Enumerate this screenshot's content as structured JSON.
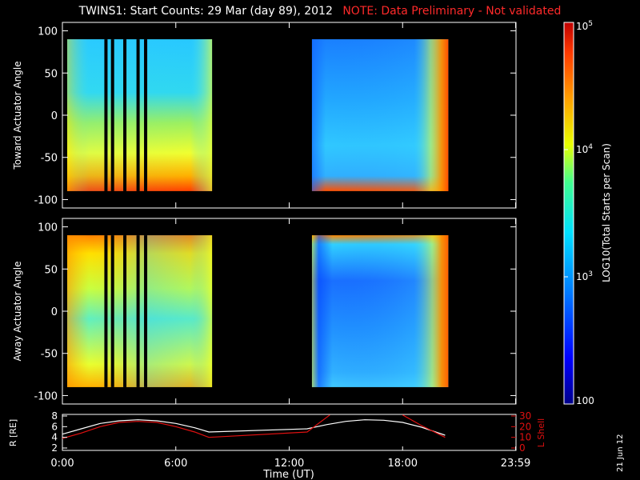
{
  "title": {
    "main": "TWINS1: Start Counts: 29 Mar (day  89), 2012",
    "note": "NOTE: Data Preliminary - Not validated"
  },
  "date_stamp": "21 Jun 12",
  "colors": {
    "background": "#000000",
    "text": "#ffffff",
    "note": "#ff2a2a",
    "l_shell": "#e01010",
    "r_line": "#ffffff"
  },
  "chart_data": [
    {
      "type": "heatmap",
      "panel": "top",
      "ylabel": "Toward Actuator Angle",
      "ylim": [
        -110,
        110
      ],
      "yticks": [
        "100",
        "50",
        "0",
        "-50",
        "-100"
      ],
      "xlim": [
        0,
        24
      ],
      "data_intervals_hours": [
        [
          0.0,
          7.75
        ],
        [
          12.95,
          20.25
        ]
      ],
      "gap_lines_hours": [
        2.05,
        2.4,
        3.05,
        3.75,
        4.15
      ]
    },
    {
      "type": "heatmap",
      "panel": "middle",
      "ylabel": "Away Actuator Angle",
      "ylim": [
        -110,
        110
      ],
      "yticks": [
        "100",
        "50",
        "0",
        "-50",
        "-100"
      ],
      "xlim": [
        0,
        24
      ],
      "data_intervals_hours": [
        [
          0.0,
          7.75
        ],
        [
          12.95,
          20.25
        ]
      ],
      "gap_lines_hours": [
        2.05,
        2.4,
        3.05,
        3.75,
        4.15
      ]
    },
    {
      "type": "line",
      "panel": "bottom",
      "ylabel_left": "R [RE]",
      "ylabel_right": "L Shell",
      "xlabel": "Time (UT)",
      "ylim_left": [
        2,
        8
      ],
      "yticks_left": [
        "2",
        "4",
        "6",
        "8"
      ],
      "ylim_right": [
        0,
        30
      ],
      "yticks_right": [
        "0",
        "10",
        "20",
        "30"
      ],
      "xlim": [
        0,
        24
      ],
      "xticks": [
        {
          "x": 0,
          "label": "0:00"
        },
        {
          "x": 6,
          "label": "6:00"
        },
        {
          "x": 12,
          "label": "12:00"
        },
        {
          "x": 18,
          "label": "18:00"
        },
        {
          "x": 23.98,
          "label": "23:59"
        }
      ],
      "series": [
        {
          "name": "R",
          "axis": "left",
          "x": [
            0,
            1,
            2,
            3,
            4,
            5,
            6,
            7,
            7.75,
            12.95,
            14,
            15,
            16,
            17,
            18,
            19,
            20.25
          ],
          "y": [
            4.6,
            5.6,
            6.6,
            7.1,
            7.3,
            7.1,
            6.6,
            5.8,
            5.0,
            5.6,
            6.4,
            7.0,
            7.3,
            7.2,
            6.8,
            5.9,
            4.4
          ]
        },
        {
          "name": "L Shell",
          "axis": "right",
          "x": [
            0,
            1,
            2,
            3,
            4,
            5,
            6,
            7,
            7.75,
            12.95,
            14.15,
            null,
            18.0,
            19.0,
            20.25
          ],
          "y": [
            9,
            14,
            20,
            24,
            25,
            24,
            20,
            15,
            10,
            15,
            31,
            null,
            31,
            21,
            10
          ]
        }
      ],
      "colorbar": {
        "label": "LOG10(Total Starts per Scan)",
        "ticks": [
          "10^5",
          "10^4",
          "10^3",
          "100"
        ],
        "range": [
          100,
          100000
        ]
      }
    }
  ]
}
